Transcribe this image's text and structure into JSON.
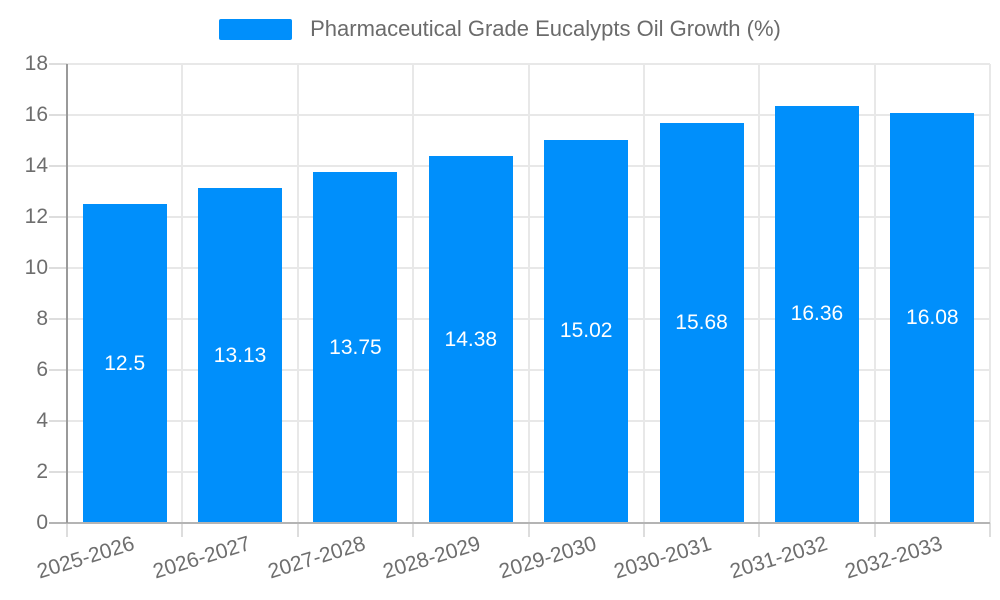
{
  "chart_data": {
    "type": "bar",
    "title": "Pharmaceutical Grade Eucalypts Oil Growth (%)",
    "legend": "Pharmaceutical Grade Eucalypts Oil Growth (%)",
    "legend_position": "top",
    "categories": [
      "2025-2026",
      "2026-2027",
      "2027-2028",
      "2028-2029",
      "2029-2030",
      "2030-2031",
      "2031-2032",
      "2032-2033"
    ],
    "series": [
      {
        "name": "Pharmaceutical Grade Eucalypts Oil Growth (%)",
        "values": [
          12.5,
          13.13,
          13.75,
          14.38,
          15.02,
          15.68,
          16.36,
          16.08
        ]
      }
    ],
    "data_labels": [
      "12.5",
      "13.13",
      "13.75",
      "14.38",
      "15.02",
      "15.68",
      "16.36",
      "16.08"
    ],
    "xlabel": "",
    "ylabel": "",
    "ylim": [
      0,
      18
    ],
    "yticks": [
      0,
      2,
      4,
      6,
      8,
      10,
      12,
      14,
      16,
      18
    ],
    "grid": true,
    "colors": {
      "bar": "#008FFB",
      "data_label": "#ffffff",
      "axis_label": "#6e6e6e",
      "legend_text": "#6b6b6b",
      "gridline": "#e8e8e8",
      "tick": "#dddddd",
      "x_axis_line": "#b4b4b4",
      "y_axis_line": "#9a9a9a",
      "background": "#ffffff"
    }
  }
}
